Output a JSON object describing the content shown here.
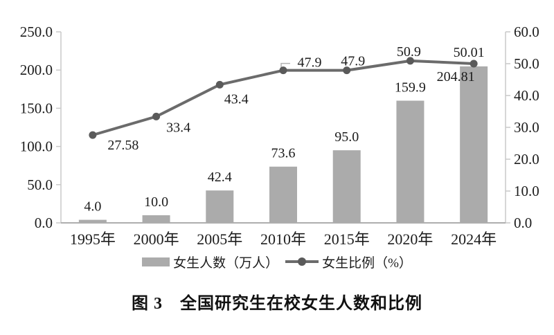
{
  "figure_title": "图 3　全国研究生在校女生人数和比例",
  "chart_data": {
    "type": "combo-bar-line",
    "title": "图 3　全国研究生在校女生人数和比例",
    "categories": [
      "1995年",
      "2000年",
      "2005年",
      "2010年",
      "2015年",
      "2020年",
      "2024年"
    ],
    "series": [
      {
        "name": "女生人数（万人）",
        "kind": "bar",
        "axis": "left",
        "color": "#ababab",
        "values": [
          4.0,
          10.0,
          42.4,
          73.6,
          95.0,
          159.9,
          204.81
        ],
        "labels": [
          "4.0",
          "10.0",
          "42.4",
          "73.6",
          "95.0",
          "159.9",
          "204.81"
        ]
      },
      {
        "name": "女生比例（%）",
        "kind": "line",
        "axis": "right",
        "color": "#6b6b6b",
        "marker_color": "#5a5a5a",
        "values": [
          27.58,
          33.4,
          43.4,
          47.9,
          47.9,
          50.9,
          50.01
        ],
        "labels": [
          "27.58",
          "33.4",
          "43.4",
          "47.9",
          "47.9",
          "50.9",
          "50.01"
        ]
      }
    ],
    "left_axis": {
      "min": 0,
      "max": 250,
      "ticks": [
        "250.0",
        "200.0",
        "150.0",
        "100.0",
        "50.0",
        "0.0"
      ]
    },
    "right_axis": {
      "min": 0,
      "max": 60,
      "ticks": [
        "60.0",
        "50.0",
        "40.0",
        "30.0",
        "20.0",
        "10.0",
        "0.0"
      ]
    },
    "xlabel": "",
    "ylabel": "",
    "legend_position": "bottom",
    "grid": false,
    "axis_line_color": "#c9c9c9",
    "baseline_color": "#adadad"
  }
}
